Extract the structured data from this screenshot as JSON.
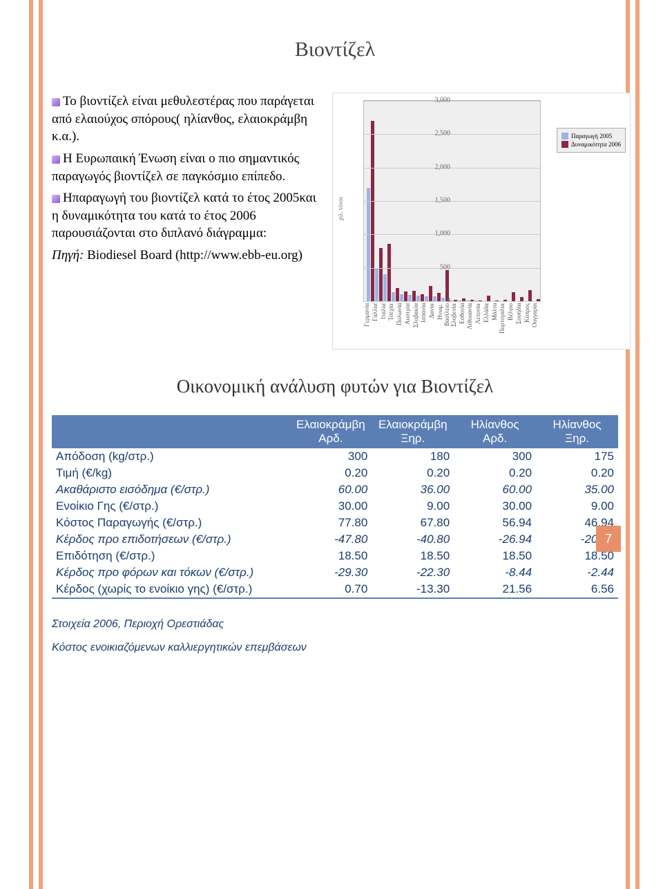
{
  "title": "Βιοντίζελ",
  "bullets": [
    "Το βιοντίζελ είναι μεθυλεστέρας που παράγεται από ελαιούχος σπόρους( ηλίανθος, ελαιοκράμβη κ.α.).",
    "Η Ευρωπαική Ένωση είναι ο πιο σημαντικός παραγωγός βιοντίζελ σε παγκόσμιο επίπεδο.",
    "Ηπαραγωγή του βιοντίζελ κατά το έτος 2005και η δυναμικότητα του κατά το έτος 2006 παρουσιάζονται στο διπλανό διάγραμμα:"
  ],
  "source_label": "Πηγή:",
  "source_text": " Biodiesel Board (http://www.ebb-eu.org)",
  "bullet_color": "#8a5bd6",
  "chart": {
    "type": "bar",
    "ylabel": "χιλ. τόνοι",
    "ymax": 3000,
    "ytick_step": 500,
    "bg": "#efefef",
    "grid": "#cccccc",
    "series": [
      {
        "name": "Παραγωγή 2005",
        "color": "#9db4e0"
      },
      {
        "name": "Δυναμικότητα 2006",
        "color": "#8a2846"
      }
    ],
    "categories": [
      "Γερμανία",
      "Γαλλία",
      "Ιταλία",
      "Τσεχία",
      "Πολωνία",
      "Αυστρία",
      "Σλοβακία",
      "Ισπανία",
      "Δανία",
      "Ηνωμ. Βασίλειο",
      "Σλοβενία",
      "Εσθονία",
      "Λιθουανία",
      "Λετονία",
      "Ελλάδα",
      "Μάλτα",
      "Πορτογαλία",
      "Βέλγιο",
      "Σουηδία",
      "Κύπρος",
      "Ουγγαρία"
    ],
    "s1": [
      1700,
      500,
      400,
      130,
      100,
      90,
      80,
      75,
      70,
      55,
      10,
      10,
      8,
      6,
      5,
      4,
      3,
      3,
      3,
      2,
      2
    ],
    "s2": [
      2700,
      800,
      860,
      200,
      150,
      160,
      100,
      230,
      120,
      470,
      20,
      40,
      20,
      15,
      80,
      10,
      20,
      130,
      60,
      170,
      30
    ]
  },
  "section2_title": "Οικονομική ανάλυση φυτών για Βιοντίζελ",
  "table": {
    "header_bg": "#5b7fb4",
    "header_fg": "#ffffff",
    "text_color": "#1a3d6e",
    "columns": [
      "",
      "Ελαιοκράμβη Αρδ.",
      "Ελαιοκράμβη Ξηρ.",
      "Ηλίανθος Αρδ.",
      "Ηλίανθος Ξηρ."
    ],
    "rows": [
      {
        "label": "Απόδοση (kg/στρ.)",
        "v": [
          "300",
          "180",
          "300",
          "175"
        ],
        "it": false
      },
      {
        "label": "Τιμή (€/kg)",
        "v": [
          "0.20",
          "0.20",
          "0.20",
          "0.20"
        ],
        "it": false
      },
      {
        "label": "Ακαθάριστο εισόδημα (€/στρ.)",
        "v": [
          "60.00",
          "36.00",
          "60.00",
          "35.00"
        ],
        "it": true
      },
      {
        "label": "Ενοίκιο Γης (€/στρ.)",
        "v": [
          "30.00",
          "9.00",
          "30.00",
          "9.00"
        ],
        "it": false
      },
      {
        "label": "Κόστος Παραγωγής (€/στρ.)",
        "v": [
          "77.80",
          "67.80",
          "56.94",
          "46.94"
        ],
        "it": false
      },
      {
        "label": "Κέρδος προ επιδοτήσεων (€/στρ.)",
        "v": [
          "-47.80",
          "-40.80",
          "-26.94",
          "-20.94"
        ],
        "it": true
      },
      {
        "label": "Επιδότηση (€/στρ.)",
        "v": [
          "18.50",
          "18.50",
          "18.50",
          "18.50"
        ],
        "it": false
      },
      {
        "label": "Κέρδος προ φόρων και τόκων (€/στρ.)",
        "v": [
          "-29.30",
          "-22.30",
          "-8.44",
          "-2.44"
        ],
        "it": true
      },
      {
        "label": "Κέρδος (χωρίς το ενοίκιο γης) (€/στρ.)",
        "v": [
          "0.70",
          "-13.30",
          "21.56",
          "6.56"
        ],
        "it": false
      }
    ]
  },
  "footnote1": "Στοιχεία 2006, Περιοχή Ορεστιάδας",
  "footnote2": "Κόστος ενοικιαζόμενων καλλιεργητικών επεμβάσεων",
  "page_number": "7"
}
